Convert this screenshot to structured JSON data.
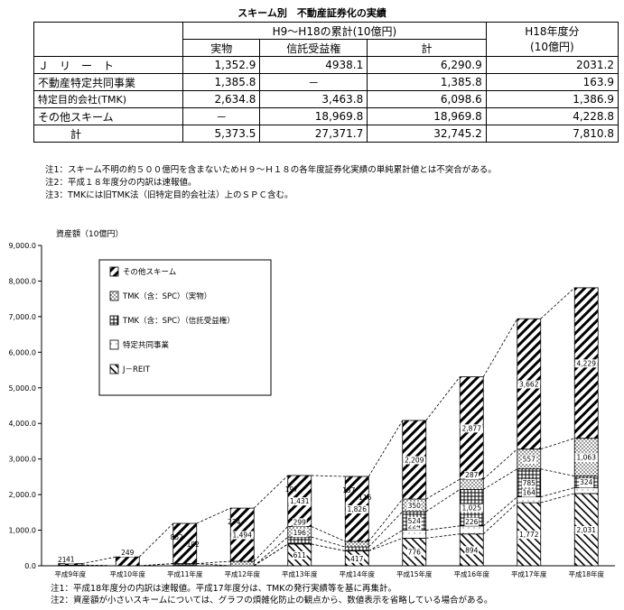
{
  "title": "スキーム別　不動産証券化の実績",
  "table": {
    "group_header": "H9～H18の累計(10億円)",
    "h18_header_line1": "H18年度分",
    "h18_header_line2": "(10億円)",
    "col_headers": [
      "実物",
      "信託受益権",
      "計"
    ],
    "rows": [
      {
        "label": "Ｊ　リ　ー　ト",
        "cells": [
          "1,352.9",
          "4938.1",
          "6,290.9",
          "2031.2"
        ]
      },
      {
        "label": "不動産特定共同事業",
        "cells": [
          "1,385.8",
          "－",
          "1,385.8",
          "163.9"
        ]
      },
      {
        "label": "特定目的会社(TMK)",
        "cells": [
          "2,634.8",
          "3,463.8",
          "6,098.6",
          "1,386.9"
        ]
      },
      {
        "label": "その他スキーム",
        "cells": [
          "－",
          "18,969.8",
          "18,969.8",
          "4,228.8"
        ]
      },
      {
        "label": "計",
        "cells": [
          "5,373.5",
          "27,371.7",
          "32,745.2",
          "7,810.8"
        ]
      }
    ]
  },
  "notes_top": [
    "注1：スキーム不明の約５００億円を含まないためＨ９～Ｈ１８の各年度証券化実績の単純累計値とは不突合がある。",
    "注2：平成１８年度分の内訳は速報値。",
    "注3：TMKには旧TMK法（旧特定目的会社法）上のＳＰＣ含む。"
  ],
  "notes_bottom": [
    "注1：平成18年度分の内訳は速報値。平成17年度分は、TMKの発行実績等を基に再集計。",
    "注2：資産額が小さいスキームについては、グラフの煩雑化防止の観点から、数値表示を省略している場合がある。"
  ],
  "chart_data": {
    "type": "bar",
    "stacked": true,
    "ylabel": "資産額（10億円）",
    "ylim": [
      0,
      9000
    ],
    "yticks": [
      "0.0",
      "1,000.0",
      "2,000.0",
      "3,000.0",
      "4,000.0",
      "5,000.0",
      "6,000.0",
      "7,000.0",
      "8,000.0",
      "9,000.0"
    ],
    "categories": [
      "平成9年度",
      "平成10年度",
      "平成11年度",
      "平成12年度",
      "平成13年度",
      "平成14年度",
      "平成15年度",
      "平成16年度",
      "平成17年度",
      "平成18年度"
    ],
    "series": [
      {
        "name": "J－REIT",
        "values": [
          0,
          0,
          0,
          0,
          611,
          417,
          776,
          894,
          1772,
          2031
        ],
        "labels": [
          "",
          "",
          "",
          "",
          "611",
          "417",
          "776",
          "894",
          "1,772",
          "2,031"
        ]
      },
      {
        "name": "特定共同事業",
        "values": [
          20,
          0,
          0,
          0,
          0,
          0,
          224,
          226,
          164,
          164
        ],
        "labels": [
          "",
          "",
          "",
          "",
          "",
          "",
          "224",
          "226",
          "164",
          "164"
        ]
      },
      {
        "name": "TMK（含：SPC）（信託受益権）",
        "values": [
          0,
          0,
          62,
          0,
          196,
          113,
          524,
          1025,
          785,
          324
        ],
        "labels": [
          "",
          "",
          "",
          "",
          "196",
          "",
          "524",
          "1,025",
          "785",
          "324"
        ]
      },
      {
        "name": "TMK（含：SPC）（実物）",
        "values": [
          0,
          0,
          0,
          126,
          299,
          154,
          350,
          287,
          557,
          1063
        ],
        "labels": [
          "",
          "",
          "",
          "",
          "299",
          "",
          "350",
          "287",
          "557",
          "1,063"
        ]
      },
      {
        "name": "その他スキーム",
        "values": [
          41,
          249,
          1129,
          1494,
          1431,
          1826,
          2209,
          2877,
          3662,
          4229
        ],
        "labels": [
          "41",
          "249",
          "",
          "1,494",
          "1,431",
          "1,826",
          "2,209",
          "2,877",
          "3,662",
          "4,229"
        ]
      }
    ],
    "extra_labels": [
      {
        "category_index": 0,
        "text": "21"
      },
      {
        "category_index": 2,
        "text": "852"
      },
      {
        "category_index": 2,
        "text": "102"
      },
      {
        "category_index": 3,
        "text": "234"
      },
      {
        "category_index": 4,
        "text": "197"
      },
      {
        "category_index": 5,
        "text": "137"
      },
      {
        "category_index": 5,
        "text": "116"
      }
    ],
    "legend_order": [
      "その他スキーム",
      "TMK（含：SPC）（実物）",
      "TMK（含：SPC）（信託受益権）",
      "特定共同事業",
      "J－REIT"
    ],
    "legend_placement": "top-left",
    "connector_lines": true,
    "grid": false
  }
}
